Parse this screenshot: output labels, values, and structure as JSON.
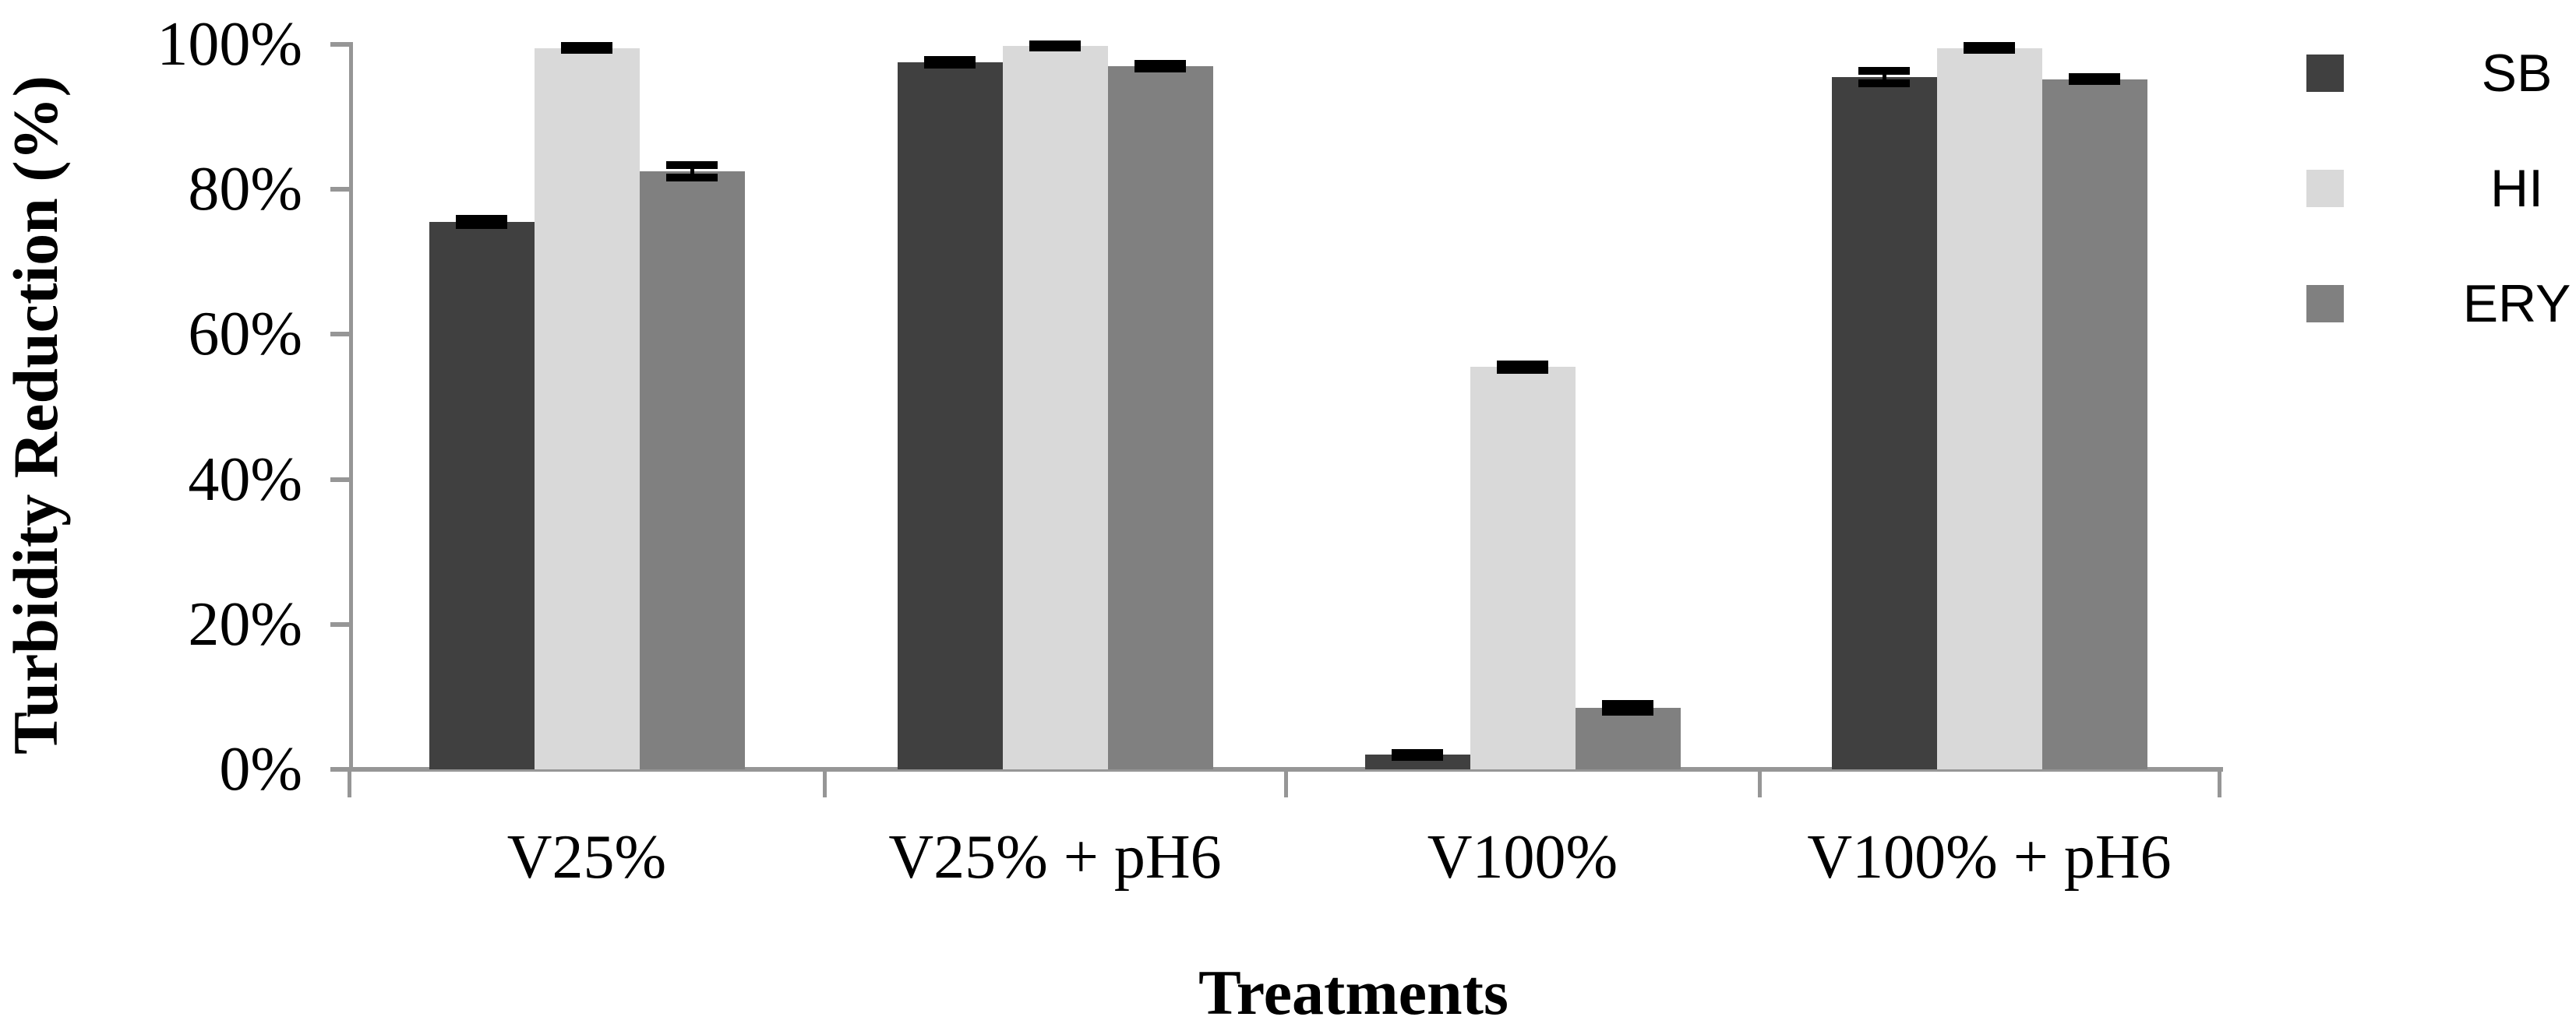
{
  "figure": {
    "background": "#ffffff"
  },
  "chart_data": {
    "type": "bar",
    "title": "",
    "xlabel": "Treatments",
    "ylabel": "Turbidity Reduction (%)",
    "categories": [
      "V25%",
      "V25% + pH6",
      "V100%",
      "V100% + pH6"
    ],
    "series": [
      {
        "name": "SB",
        "color": "#404040",
        "values": [
          75.5,
          97.5,
          2.0,
          95.5
        ],
        "errors": [
          0.4,
          0.3,
          0.3,
          0.9
        ]
      },
      {
        "name": "HI",
        "color": "#d9d9d9",
        "values": [
          99.5,
          99.8,
          55.5,
          99.5
        ],
        "errors": [
          0.3,
          0.2,
          0.4,
          0.3
        ]
      },
      {
        "name": "ERY",
        "color": "#808080",
        "values": [
          82.5,
          97.0,
          8.5,
          95.2
        ],
        "errors": [
          0.9,
          0.3,
          0.5,
          0.3
        ]
      }
    ],
    "y_axis": {
      "min": 0,
      "max": 100,
      "tick_step": 20,
      "tick_labels": [
        "0%",
        "20%",
        "40%",
        "60%",
        "80%",
        "100%"
      ],
      "format": "percent"
    },
    "x_axis": {
      "title": "Treatments"
    },
    "legend": {
      "position": "right",
      "entries": [
        "SB",
        "HI",
        "ERY"
      ]
    },
    "error_bar_color": "#000000",
    "axis_color": "#969696",
    "grid": "off",
    "plot_background": "#ffffff"
  }
}
